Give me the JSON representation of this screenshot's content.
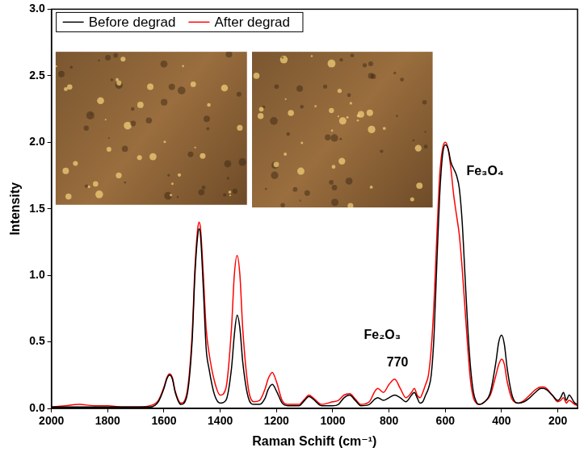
{
  "chart_data": {
    "type": "line",
    "x_label": "Raman Schift (cm⁻¹)",
    "y_label": "Intensity",
    "x": [
      2000,
      1950,
      1900,
      1850,
      1800,
      1750,
      1700,
      1650,
      1620,
      1600,
      1590,
      1580,
      1570,
      1560,
      1540,
      1520,
      1500,
      1490,
      1480,
      1475,
      1470,
      1460,
      1450,
      1440,
      1420,
      1400,
      1380,
      1360,
      1350,
      1340,
      1330,
      1320,
      1300,
      1280,
      1260,
      1240,
      1230,
      1215,
      1200,
      1180,
      1160,
      1120,
      1100,
      1085,
      1070,
      1040,
      1000,
      980,
      960,
      940,
      920,
      900,
      870,
      850,
      840,
      820,
      800,
      780,
      760,
      740,
      720,
      710,
      700,
      690,
      680,
      670,
      660,
      650,
      640,
      630,
      620,
      610,
      600,
      590,
      580,
      570,
      560,
      550,
      540,
      530,
      520,
      510,
      500,
      490,
      480,
      460,
      440,
      420,
      410,
      400,
      390,
      380,
      360,
      340,
      320,
      300,
      280,
      260,
      250,
      240,
      220,
      200,
      190,
      180,
      170,
      160,
      140,
      130
    ],
    "series": [
      {
        "name": "Before degrad",
        "color": "#000000",
        "values": [
          0.01,
          0.01,
          0.01,
          0.01,
          0.01,
          0.01,
          0.01,
          0.01,
          0.05,
          0.15,
          0.22,
          0.25,
          0.22,
          0.12,
          0.03,
          0.08,
          0.5,
          1.0,
          1.3,
          1.35,
          1.3,
          0.9,
          0.45,
          0.3,
          0.1,
          0.04,
          0.06,
          0.3,
          0.55,
          0.7,
          0.6,
          0.35,
          0.08,
          0.03,
          0.03,
          0.08,
          0.14,
          0.18,
          0.13,
          0.04,
          0.02,
          0.02,
          0.06,
          0.09,
          0.07,
          0.02,
          0.02,
          0.03,
          0.08,
          0.1,
          0.06,
          0.02,
          0.03,
          0.07,
          0.08,
          0.06,
          0.08,
          0.1,
          0.08,
          0.05,
          0.1,
          0.12,
          0.08,
          0.04,
          0.05,
          0.1,
          0.15,
          0.25,
          0.55,
          1.1,
          1.6,
          1.9,
          1.98,
          1.95,
          1.85,
          1.8,
          1.75,
          1.65,
          1.4,
          1.0,
          0.6,
          0.3,
          0.12,
          0.05,
          0.03,
          0.05,
          0.12,
          0.35,
          0.5,
          0.55,
          0.48,
          0.3,
          0.08,
          0.04,
          0.05,
          0.08,
          0.12,
          0.15,
          0.15,
          0.14,
          0.1,
          0.06,
          0.08,
          0.12,
          0.06,
          0.1,
          0.04,
          0.03
        ]
      },
      {
        "name": "After degrad",
        "color": "#ff0000",
        "values": [
          0.01,
          0.02,
          0.03,
          0.02,
          0.02,
          0.01,
          0.01,
          0.02,
          0.06,
          0.16,
          0.23,
          0.26,
          0.23,
          0.13,
          0.04,
          0.1,
          0.55,
          1.05,
          1.35,
          1.4,
          1.35,
          1.0,
          0.6,
          0.42,
          0.2,
          0.1,
          0.15,
          0.6,
          1.0,
          1.15,
          1.0,
          0.6,
          0.15,
          0.05,
          0.06,
          0.15,
          0.22,
          0.27,
          0.2,
          0.06,
          0.03,
          0.03,
          0.07,
          0.1,
          0.08,
          0.03,
          0.05,
          0.06,
          0.1,
          0.11,
          0.07,
          0.03,
          0.05,
          0.13,
          0.15,
          0.12,
          0.18,
          0.22,
          0.15,
          0.08,
          0.12,
          0.15,
          0.1,
          0.08,
          0.12,
          0.18,
          0.25,
          0.45,
          0.8,
          1.3,
          1.75,
          1.95,
          2.0,
          1.95,
          1.8,
          1.6,
          1.45,
          1.3,
          1.05,
          0.75,
          0.45,
          0.2,
          0.08,
          0.04,
          0.03,
          0.05,
          0.1,
          0.25,
          0.33,
          0.37,
          0.33,
          0.2,
          0.06,
          0.04,
          0.06,
          0.1,
          0.14,
          0.16,
          0.16,
          0.15,
          0.1,
          0.05,
          0.06,
          0.08,
          0.04,
          0.06,
          0.03,
          0.02
        ]
      }
    ],
    "xlim": [
      2000,
      130
    ],
    "xticks": [
      2000,
      1800,
      1600,
      1400,
      1200,
      1000,
      800,
      600,
      400,
      200
    ],
    "ylim": [
      0,
      3
    ],
    "yticks": [
      {
        "value": 0,
        "label": "0.0"
      },
      0.5,
      {
        "value": 1,
        "label": "1.0"
      },
      1.5,
      {
        "value": 2,
        "label": "2.0"
      },
      2.5,
      {
        "value": 3,
        "label": "3.0"
      }
    ],
    "annotations": [
      {
        "text": "Fe₃O₄"
      },
      {
        "text": "Fe₂O₃"
      },
      {
        "text": "770"
      }
    ],
    "grid": false,
    "legend": "top left"
  }
}
